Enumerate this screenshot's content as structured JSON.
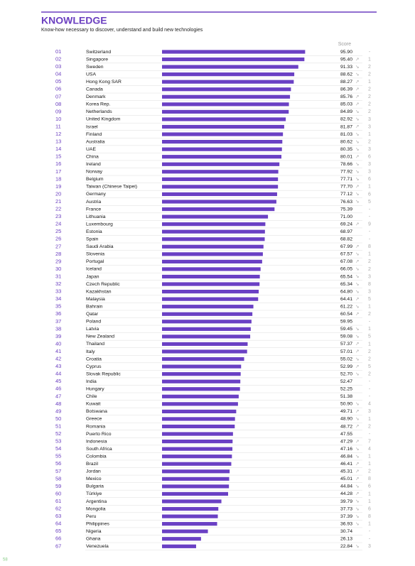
{
  "header": {
    "title": "KNOWLEDGE",
    "subtitle": "Know-how necessary to discover, understand and build new technologies",
    "score_label": "Score"
  },
  "table": {
    "rows": [
      {
        "rank": "01",
        "country": "Switzerland",
        "score": "95.90",
        "change": "-"
      },
      {
        "rank": "02",
        "country": "Singapore",
        "score": "95.40",
        "trend": "↗",
        "change": "1"
      },
      {
        "rank": "03",
        "country": "Sweden",
        "score": "91.33",
        "trend": "↘",
        "change": "2"
      },
      {
        "rank": "04",
        "country": "USA",
        "score": "88.62",
        "trend": "↘",
        "change": "2"
      },
      {
        "rank": "05",
        "country": "Hong Kong SAR",
        "score": "88.27",
        "trend": "↗",
        "change": "1"
      },
      {
        "rank": "06",
        "country": "Canada",
        "score": "86.39",
        "trend": "↗",
        "change": "2"
      },
      {
        "rank": "07",
        "country": "Denmark",
        "score": "85.76",
        "trend": "↗",
        "change": "2"
      },
      {
        "rank": "08",
        "country": "Korea Rep.",
        "score": "85.03",
        "trend": "↗",
        "change": "2"
      },
      {
        "rank": "09",
        "country": "Netherlands",
        "score": "84.89",
        "trend": "↘",
        "change": "2"
      },
      {
        "rank": "10",
        "country": "United Kingdom",
        "score": "82.92",
        "trend": "↘",
        "change": "3"
      },
      {
        "rank": "11",
        "country": "Israel",
        "score": "81.87",
        "trend": "↗",
        "change": "3"
      },
      {
        "rank": "12",
        "country": "Finland",
        "score": "81.03",
        "trend": "↘",
        "change": "1"
      },
      {
        "rank": "13",
        "country": "Australia",
        "score": "80.62",
        "trend": "↘",
        "change": "2"
      },
      {
        "rank": "14",
        "country": "UAE",
        "score": "80.35",
        "trend": "↘",
        "change": "3"
      },
      {
        "rank": "15",
        "country": "China",
        "score": "80.01",
        "trend": "↗",
        "change": "6"
      },
      {
        "rank": "16",
        "country": "Ireland",
        "score": "78.66",
        "trend": "↘",
        "change": "3"
      },
      {
        "rank": "17",
        "country": "Norway",
        "score": "77.92",
        "trend": "↘",
        "change": "3"
      },
      {
        "rank": "18",
        "country": "Belgium",
        "score": "77.71",
        "trend": "↘",
        "change": "6"
      },
      {
        "rank": "19",
        "country": "Taiwan (Chinese Taipei)",
        "score": "77.70",
        "trend": "↗",
        "change": "1"
      },
      {
        "rank": "20",
        "country": "Germany",
        "score": "77.12",
        "trend": "↘",
        "change": "6"
      },
      {
        "rank": "21",
        "country": "Austria",
        "score": "76.63",
        "trend": "↘",
        "change": "5"
      },
      {
        "rank": "22",
        "country": "France",
        "score": "75.39",
        "change": "-"
      },
      {
        "rank": "23",
        "country": "Lithuania",
        "score": "71.00",
        "change": "-"
      },
      {
        "rank": "24",
        "country": "Luxembourg",
        "score": "69.24",
        "trend": "↗",
        "change": "9"
      },
      {
        "rank": "25",
        "country": "Estonia",
        "score": "68.97",
        "change": "-"
      },
      {
        "rank": "26",
        "country": "Spain",
        "score": "68.82",
        "change": "-"
      },
      {
        "rank": "27",
        "country": "Saudi Arabia",
        "score": "67.99",
        "trend": "↗",
        "change": "8"
      },
      {
        "rank": "28",
        "country": "Slovenia",
        "score": "67.57",
        "trend": "↘",
        "change": "1"
      },
      {
        "rank": "29",
        "country": "Portugal",
        "score": "67.08",
        "trend": "↗",
        "change": "2"
      },
      {
        "rank": "30",
        "country": "Iceland",
        "score": "66.05",
        "trend": "↘",
        "change": "2"
      },
      {
        "rank": "31",
        "country": "Japan",
        "score": "65.54",
        "trend": "↘",
        "change": "3"
      },
      {
        "rank": "32",
        "country": "Czech Republic",
        "score": "65.34",
        "trend": "↘",
        "change": "8"
      },
      {
        "rank": "33",
        "country": "Kazakhstan",
        "score": "64.80",
        "trend": "↘",
        "change": "3"
      },
      {
        "rank": "34",
        "country": "Malaysia",
        "score": "64.41",
        "trend": "↗",
        "change": "5"
      },
      {
        "rank": "35",
        "country": "Bahrain",
        "score": "61.22",
        "trend": "↘",
        "change": "1"
      },
      {
        "rank": "36",
        "country": "Qatar",
        "score": "60.54",
        "trend": "↗",
        "change": "2"
      },
      {
        "rank": "37",
        "country": "Poland",
        "score": "59.95",
        "change": "-"
      },
      {
        "rank": "38",
        "country": "Latvia",
        "score": "59.45",
        "trend": "↘",
        "change": "1"
      },
      {
        "rank": "39",
        "country": "New Zealand",
        "score": "59.08",
        "trend": "↘",
        "change": "5"
      },
      {
        "rank": "40",
        "country": "Thailand",
        "score": "57.37",
        "trend": "↗",
        "change": "1"
      },
      {
        "rank": "41",
        "country": "Italy",
        "score": "57.01",
        "trend": "↗",
        "change": "2"
      },
      {
        "rank": "42",
        "country": "Croatia",
        "score": "55.02",
        "trend": "↘",
        "change": "2"
      },
      {
        "rank": "43",
        "country": "Cyprus",
        "score": "52.99",
        "trend": "↗",
        "change": "5"
      },
      {
        "rank": "44",
        "country": "Slovak Republic",
        "score": "52.70",
        "trend": "↘",
        "change": "2"
      },
      {
        "rank": "45",
        "country": "India",
        "score": "52.47",
        "change": "-"
      },
      {
        "rank": "46",
        "country": "Hungary",
        "score": "52.25",
        "change": "-"
      },
      {
        "rank": "47",
        "country": "Chile",
        "score": "51.38",
        "change": "-"
      },
      {
        "rank": "48",
        "country": "Kuwait",
        "score": "50.90",
        "trend": "↘",
        "change": "4"
      },
      {
        "rank": "49",
        "country": "Botswana",
        "score": "49.71",
        "trend": "↗",
        "change": "3"
      },
      {
        "rank": "50",
        "country": "Greece",
        "score": "48.90",
        "trend": "↘",
        "change": "1"
      },
      {
        "rank": "51",
        "country": "Romania",
        "score": "48.72",
        "trend": "↗",
        "change": "2"
      },
      {
        "rank": "52",
        "country": "Puerto Rico",
        "score": "47.55",
        "change": "-"
      },
      {
        "rank": "53",
        "country": "Indonesia",
        "score": "47.29",
        "trend": "↗",
        "change": "7"
      },
      {
        "rank": "54",
        "country": "South Africa",
        "score": "47.16",
        "trend": "↘",
        "change": "4"
      },
      {
        "rank": "55",
        "country": "Colombia",
        "score": "46.84",
        "trend": "↘",
        "change": "1"
      },
      {
        "rank": "56",
        "country": "Brazil",
        "score": "46.41",
        "trend": "↗",
        "change": "1"
      },
      {
        "rank": "57",
        "country": "Jordan",
        "score": "45.31",
        "trend": "↗",
        "change": "2"
      },
      {
        "rank": "58",
        "country": "Mexico",
        "score": "45.01",
        "trend": "↗",
        "change": "8"
      },
      {
        "rank": "59",
        "country": "Bulgaria",
        "score": "44.84",
        "trend": "↘",
        "change": "6"
      },
      {
        "rank": "60",
        "country": "Türkiye",
        "score": "44.28",
        "trend": "↗",
        "change": "1"
      },
      {
        "rank": "61",
        "country": "Argentina",
        "score": "39.79",
        "trend": "↘",
        "change": "1"
      },
      {
        "rank": "62",
        "country": "Mongolia",
        "score": "37.73",
        "trend": "↘",
        "change": "6"
      },
      {
        "rank": "63",
        "country": "Peru",
        "score": "37.39",
        "trend": "↘",
        "change": "8"
      },
      {
        "rank": "64",
        "country": "Philippines",
        "score": "36.93",
        "trend": "↘",
        "change": "1"
      },
      {
        "rank": "65",
        "country": "Nigeria",
        "score": "30.74",
        "change": "-"
      },
      {
        "rank": "66",
        "country": "Ghana",
        "score": "26.13",
        "change": "-"
      },
      {
        "rank": "67",
        "country": "Venezuela",
        "score": "22.84",
        "trend": "↘",
        "change": "3"
      }
    ]
  },
  "footer": {
    "page": "58"
  }
}
